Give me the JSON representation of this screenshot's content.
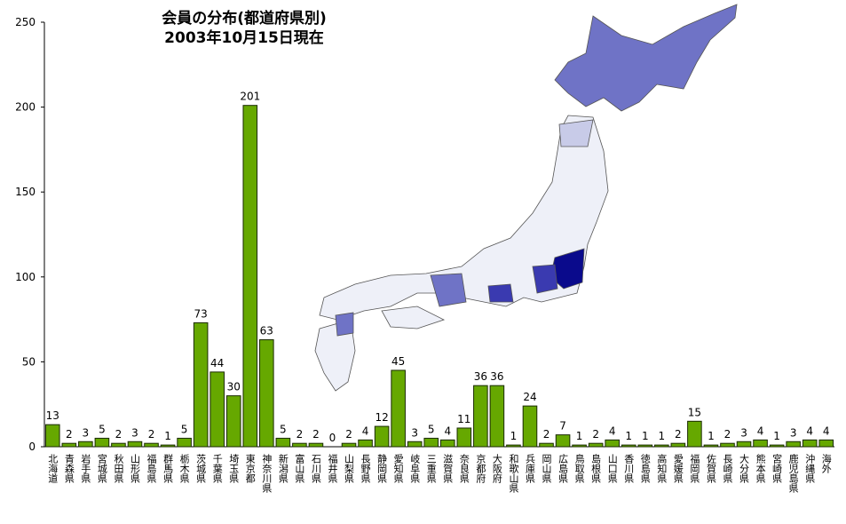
{
  "chart_data": {
    "type": "bar",
    "title": "会員の分布(都道府県別)",
    "subtitle": "2003年10月15日現在",
    "categories": [
      "北海道",
      "青森県",
      "岩手県",
      "宮城県",
      "秋田県",
      "山形県",
      "福島県",
      "群馬県",
      "栃木県",
      "茨城県",
      "千葉県",
      "埼玉県",
      "東京都",
      "神奈川県",
      "新潟県",
      "富山県",
      "石川県",
      "福井県",
      "山梨県",
      "長野県",
      "静岡県",
      "愛知県",
      "岐阜県",
      "三重県",
      "滋賀県",
      "奈良県",
      "京都府",
      "大阪府",
      "和歌山県",
      "兵庫県",
      "岡山県",
      "広島県",
      "鳥取県",
      "島根県",
      "山口県",
      "香川県",
      "徳島県",
      "高知県",
      "愛媛県",
      "福岡県",
      "佐賀県",
      "長崎県",
      "大分県",
      "熊本県",
      "宮崎県",
      "鹿児島県",
      "沖縄県",
      "海外"
    ],
    "values": [
      13,
      2,
      3,
      5,
      2,
      3,
      2,
      1,
      5,
      73,
      44,
      30,
      201,
      63,
      5,
      2,
      2,
      0,
      2,
      4,
      12,
      45,
      3,
      5,
      4,
      11,
      36,
      36,
      1,
      24,
      2,
      7,
      1,
      2,
      4,
      1,
      1,
      1,
      2,
      15,
      1,
      2,
      3,
      4,
      1,
      3,
      4,
      4
    ],
    "color": "#66a800",
    "ylim": [
      0,
      250
    ],
    "yticks": [
      0,
      50,
      100,
      150,
      200,
      250
    ],
    "grid": false
  }
}
